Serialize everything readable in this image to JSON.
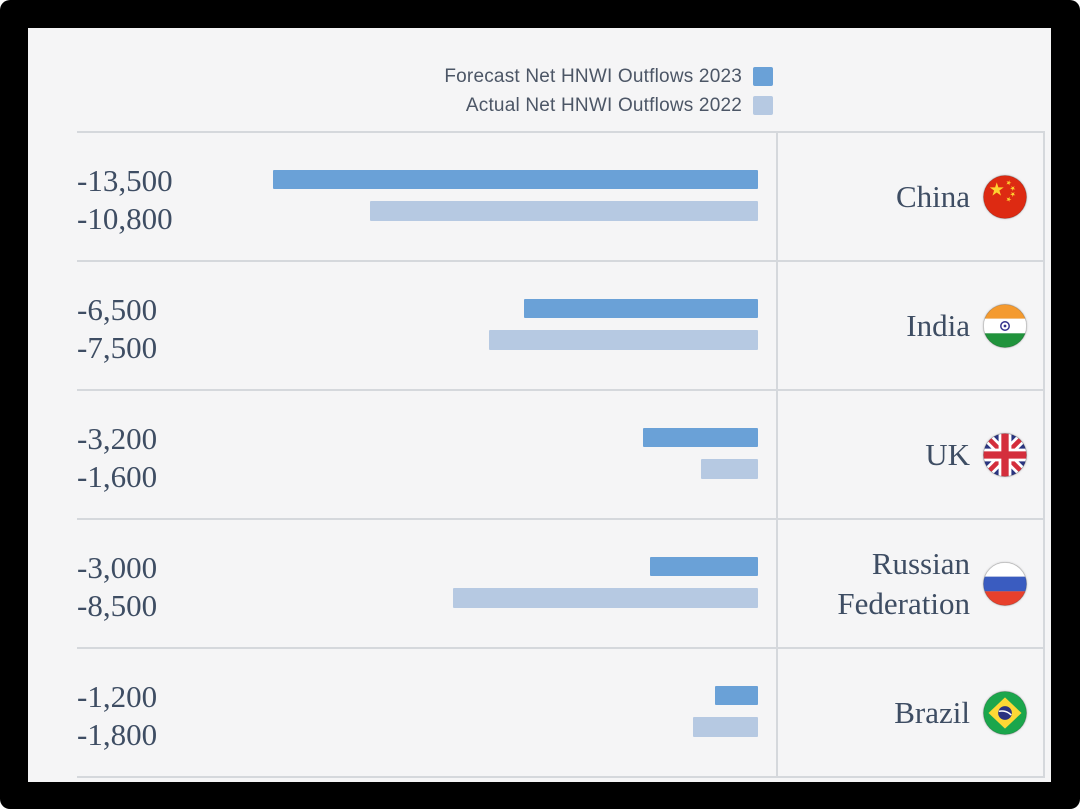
{
  "legend": {
    "items": [
      {
        "label": "Forecast Net HNWI Outflows 2023",
        "color": "#6aa1d7"
      },
      {
        "label": "Actual Net HNWI Outflows 2022",
        "color": "#b6c9e2"
      }
    ]
  },
  "chart_data": {
    "type": "bar",
    "orientation": "horizontal",
    "title": "",
    "series_names": [
      "Forecast Net HNWI Outflows 2023",
      "Actual Net HNWI Outflows 2022"
    ],
    "categories": [
      "China",
      "India",
      "UK",
      "Russian Federation",
      "Brazil"
    ],
    "value_axis_max_abs": 13500,
    "rows": [
      {
        "country": "China",
        "flag": "china",
        "values": [
          -13500,
          -10800
        ],
        "value_labels": [
          "-13,500",
          "-10,800"
        ]
      },
      {
        "country": "India",
        "flag": "india",
        "values": [
          -6500,
          -7500
        ],
        "value_labels": [
          "-6,500",
          "-7,500"
        ]
      },
      {
        "country": "UK",
        "flag": "uk",
        "values": [
          -3200,
          -1600
        ],
        "value_labels": [
          "-3,200",
          "-1,600"
        ]
      },
      {
        "country": "Russian Federation",
        "flag": "russia",
        "values": [
          -3000,
          -8500
        ],
        "value_labels": [
          "-3,000",
          "-8,500"
        ]
      },
      {
        "country": "Brazil",
        "flag": "brazil",
        "values": [
          -1200,
          -1800
        ],
        "value_labels": [
          "-1,200",
          "-1,800"
        ]
      }
    ]
  },
  "colors": {
    "forecast_bar": "#6aa1d7",
    "actual_bar": "#b6c9e2",
    "value_text": "#3e4d63",
    "legend_text": "#4c5666",
    "divider": "#d5d8dc",
    "card_bg": "#f5f5f6",
    "frame_bg": "#000000"
  }
}
